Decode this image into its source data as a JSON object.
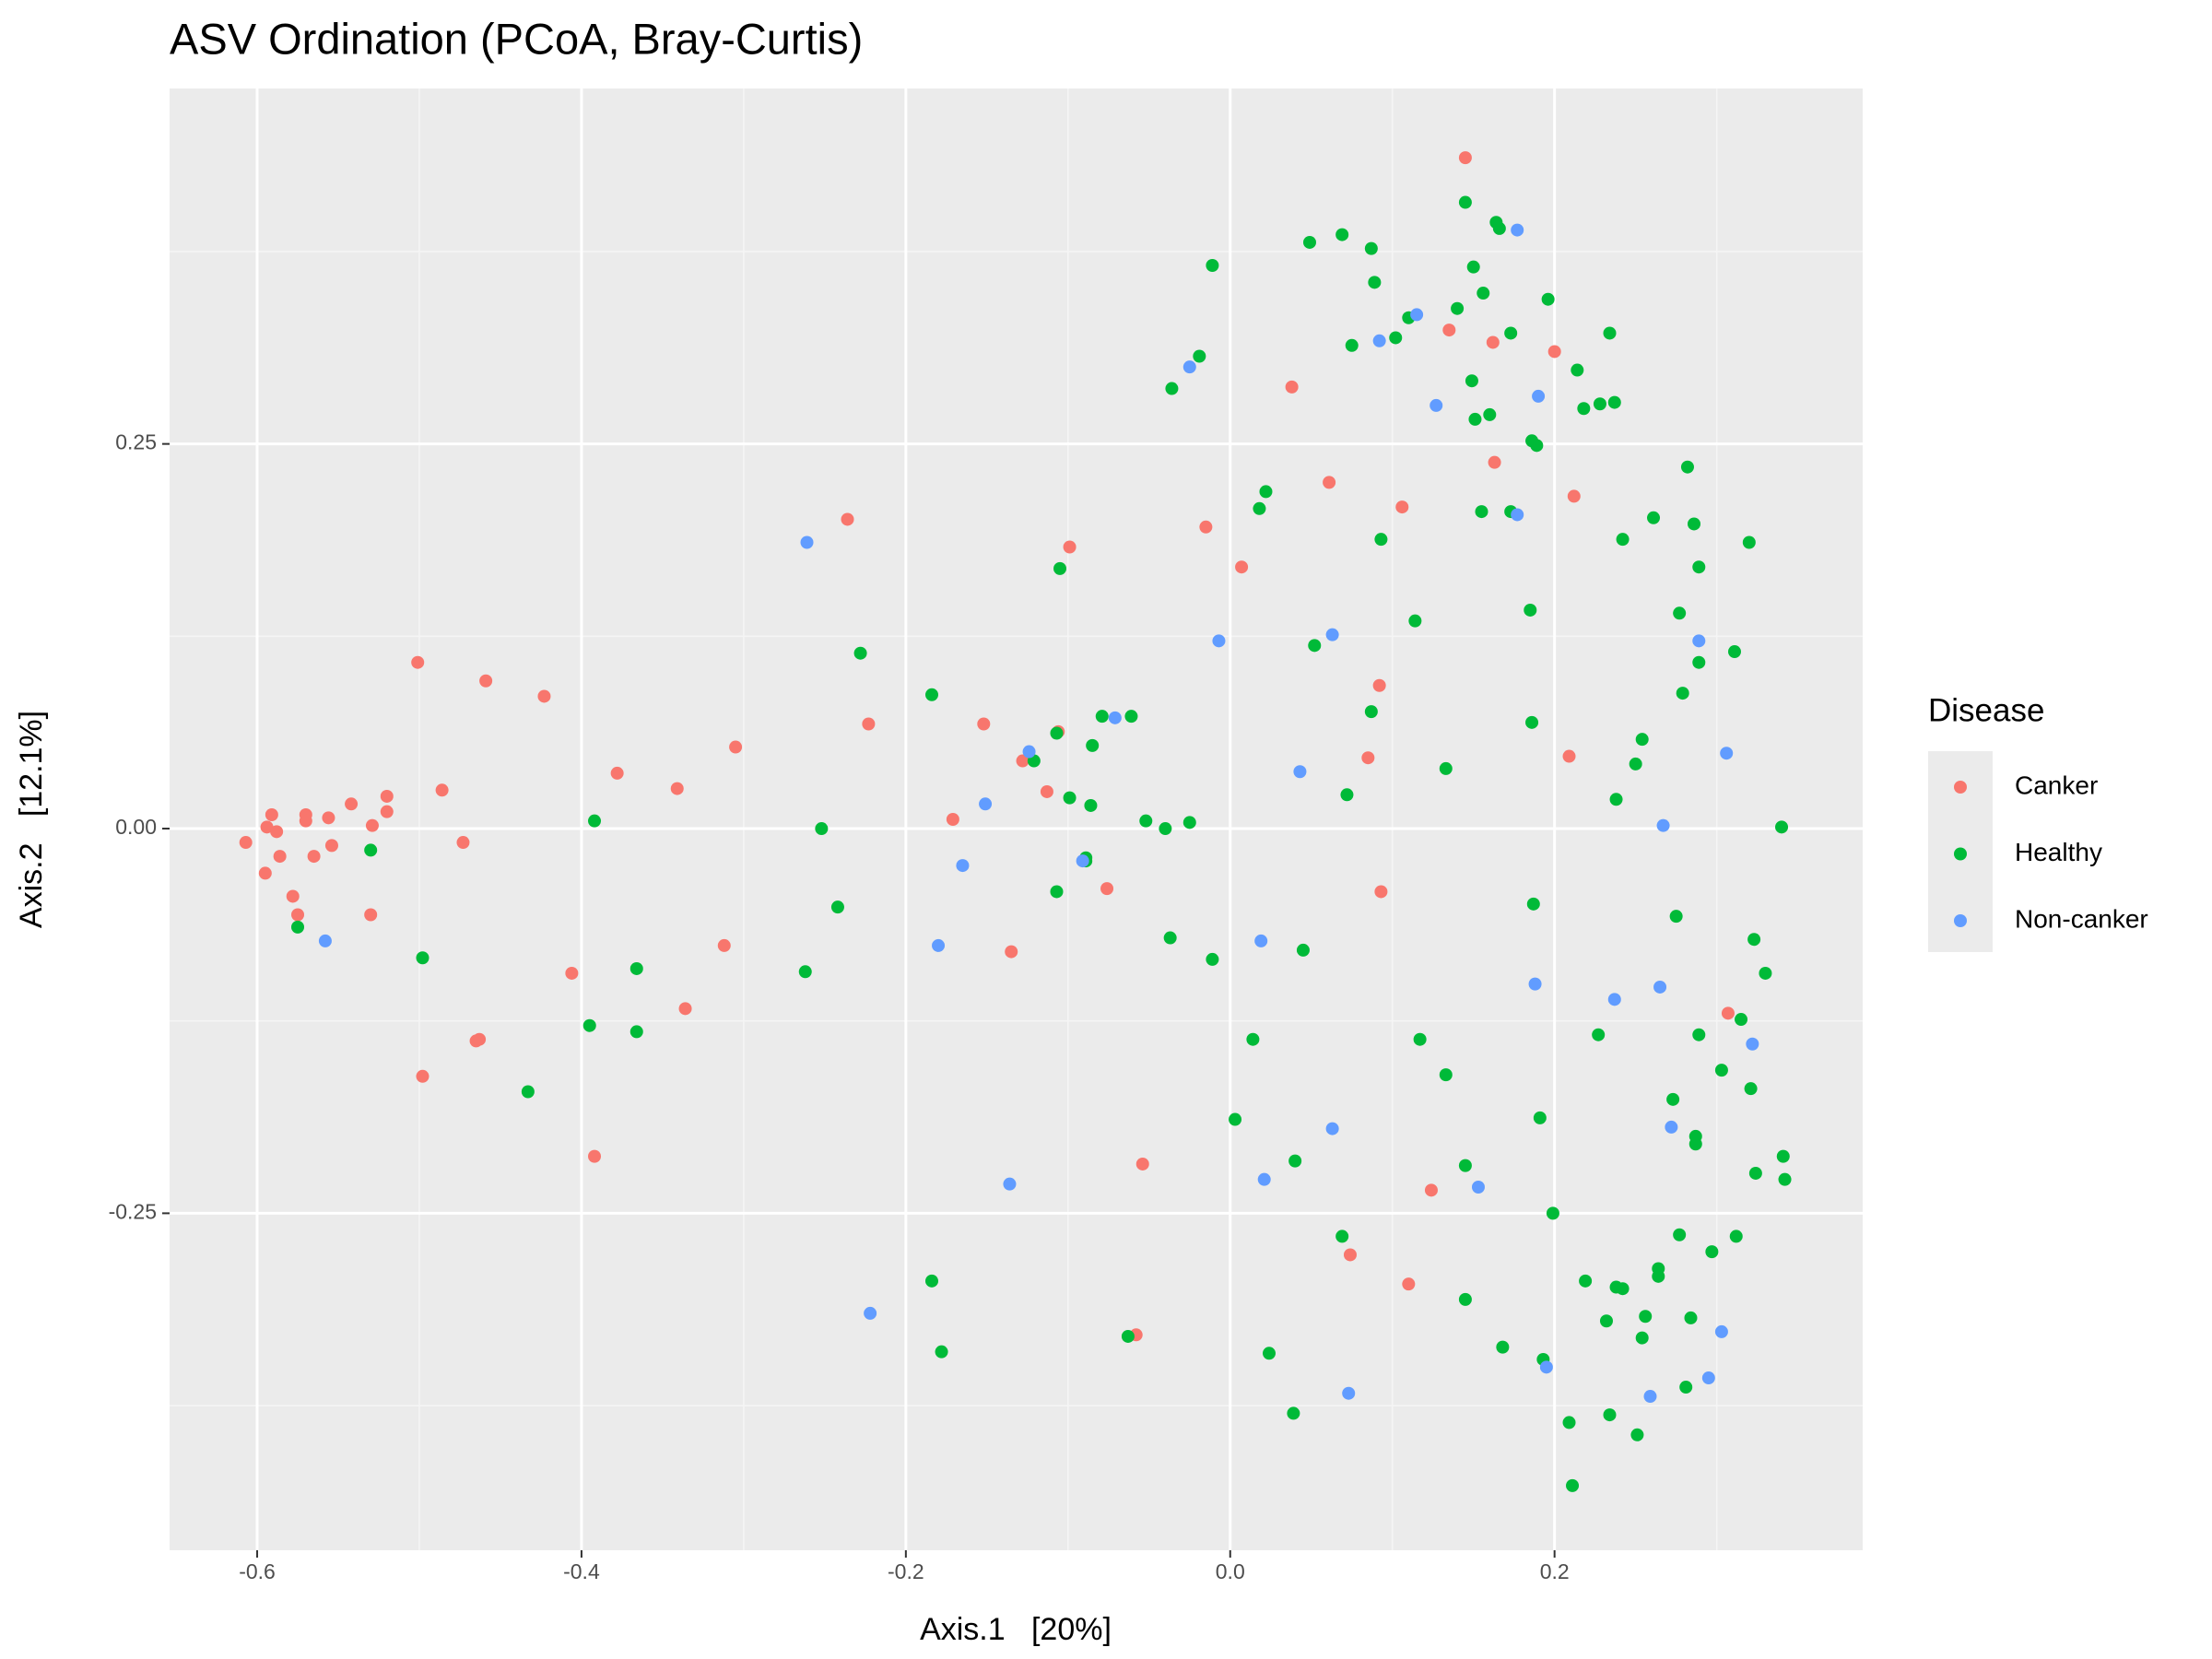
{
  "chart_data": {
    "type": "scatter",
    "title": "ASV Ordination (PCoA, Bray-Curtis)",
    "x_label": "Axis.1   [20%]",
    "y_label": "Axis.2   [12.1%]",
    "legend_title": "Disease",
    "legend_position": "right",
    "grid": true,
    "xlim": [
      -0.654,
      0.39
    ],
    "ylim": [
      -0.469,
      0.481
    ],
    "xticks": [
      -0.6,
      -0.4,
      -0.2,
      {
        "value": 0,
        "label": "0.0"
      },
      0.2
    ],
    "yticks": [
      -0.25,
      {
        "value": 0,
        "label": "0.00"
      },
      0.25
    ],
    "series": [
      {
        "name": "Canker",
        "color": "#f8766d",
        "x": [
          -0.607,
          -0.594,
          -0.591,
          -0.588,
          -0.595,
          -0.586,
          -0.578,
          -0.575,
          -0.57,
          -0.57,
          -0.565,
          -0.556,
          -0.554,
          -0.542,
          -0.53,
          -0.529,
          -0.52,
          -0.52,
          -0.501,
          -0.498,
          -0.486,
          -0.473,
          -0.465,
          -0.463,
          -0.459,
          -0.423,
          -0.406,
          -0.392,
          -0.378,
          -0.341,
          -0.336,
          -0.312,
          -0.305,
          -0.236,
          -0.223,
          -0.171,
          -0.152,
          -0.135,
          -0.128,
          -0.113,
          -0.106,
          -0.099,
          -0.076,
          -0.058,
          -0.054,
          -0.015,
          0.007,
          0.038,
          0.061,
          0.074,
          0.085,
          0.092,
          0.093,
          0.106,
          0.11,
          0.124,
          0.135,
          0.145,
          0.162,
          0.163,
          0.2,
          0.209,
          0.212,
          0.307
        ],
        "values": [
          -0.009,
          0.001,
          0.009,
          -0.002,
          -0.029,
          -0.018,
          -0.044,
          -0.056,
          0.009,
          0.005,
          -0.018,
          0.007,
          -0.011,
          0.016,
          -0.056,
          0.002,
          0.021,
          0.011,
          0.108,
          -0.161,
          0.025,
          -0.009,
          -0.138,
          -0.137,
          0.096,
          0.086,
          -0.094,
          -0.213,
          0.036,
          0.026,
          -0.117,
          -0.076,
          0.053,
          0.201,
          0.068,
          0.006,
          0.068,
          -0.08,
          0.044,
          0.024,
          0.063,
          0.183,
          -0.039,
          -0.329,
          -0.218,
          0.196,
          0.17,
          0.287,
          0.225,
          -0.277,
          0.046,
          0.093,
          -0.041,
          0.209,
          -0.296,
          -0.235,
          0.324,
          0.436,
          0.316,
          0.238,
          0.31,
          0.047,
          0.216,
          -0.12
        ]
      },
      {
        "name": "Healthy",
        "color": "#00ba38",
        "x": [
          -0.575,
          -0.53,
          -0.498,
          -0.433,
          -0.395,
          -0.392,
          -0.366,
          -0.366,
          -0.262,
          -0.252,
          -0.242,
          -0.228,
          -0.184,
          -0.184,
          -0.178,
          -0.121,
          -0.107,
          -0.107,
          -0.105,
          -0.099,
          -0.089,
          -0.089,
          -0.086,
          -0.085,
          -0.079,
          -0.063,
          -0.061,
          -0.052,
          -0.04,
          -0.037,
          -0.036,
          -0.025,
          -0.019,
          -0.011,
          -0.011,
          0.003,
          0.014,
          0.018,
          0.022,
          0.024,
          0.039,
          0.04,
          0.045,
          0.049,
          0.052,
          0.069,
          0.069,
          0.072,
          0.075,
          0.087,
          0.087,
          0.089,
          0.093,
          0.102,
          0.11,
          0.114,
          0.117,
          0.133,
          0.133,
          0.14,
          0.145,
          0.145,
          0.145,
          0.15,
          0.149,
          0.151,
          0.155,
          0.156,
          0.16,
          0.164,
          0.166,
          0.168,
          0.173,
          0.173,
          0.185,
          0.186,
          0.186,
          0.187,
          0.189,
          0.191,
          0.193,
          0.196,
          0.199,
          0.209,
          0.211,
          0.214,
          0.218,
          0.219,
          0.227,
          0.228,
          0.232,
          0.234,
          0.234,
          0.237,
          0.238,
          0.238,
          0.242,
          0.242,
          0.25,
          0.251,
          0.254,
          0.254,
          0.256,
          0.261,
          0.264,
          0.264,
          0.273,
          0.275,
          0.277,
          0.277,
          0.279,
          0.281,
          0.282,
          0.284,
          0.286,
          0.287,
          0.287,
          0.289,
          0.289,
          0.289,
          0.297,
          0.303,
          0.311,
          0.312,
          0.315,
          0.32,
          0.321,
          0.323,
          0.324,
          0.33,
          0.34,
          0.341,
          0.342
        ],
        "values": [
          -0.064,
          -0.014,
          -0.084,
          -0.171,
          -0.128,
          0.005,
          -0.091,
          -0.132,
          -0.093,
          0.0,
          -0.051,
          0.114,
          -0.294,
          0.087,
          -0.34,
          0.044,
          -0.041,
          0.062,
          0.169,
          0.02,
          -0.019,
          -0.021,
          0.015,
          0.054,
          0.073,
          -0.33,
          0.073,
          0.005,
          0.0,
          -0.071,
          0.286,
          0.004,
          0.307,
          0.366,
          -0.085,
          -0.189,
          -0.137,
          0.208,
          0.219,
          -0.341,
          -0.38,
          -0.216,
          -0.079,
          0.381,
          0.119,
          0.386,
          -0.265,
          0.022,
          0.314,
          0.377,
          0.076,
          0.355,
          0.188,
          0.319,
          0.332,
          0.135,
          -0.137,
          0.039,
          -0.16,
          0.338,
          0.407,
          -0.219,
          -0.306,
          0.365,
          0.291,
          0.266,
          0.206,
          0.348,
          0.269,
          0.394,
          0.39,
          -0.337,
          0.322,
          0.206,
          0.142,
          0.252,
          0.069,
          -0.049,
          0.249,
          -0.188,
          -0.345,
          0.344,
          -0.25,
          -0.386,
          -0.427,
          0.298,
          0.273,
          -0.294,
          -0.134,
          0.276,
          -0.32,
          0.322,
          -0.381,
          0.277,
          -0.298,
          0.019,
          -0.299,
          0.188,
          0.042,
          -0.394,
          0.058,
          -0.331,
          -0.317,
          0.202,
          -0.286,
          -0.291,
          -0.176,
          -0.057,
          -0.264,
          0.14,
          0.088,
          -0.363,
          0.235,
          -0.318,
          0.198,
          -0.2,
          -0.205,
          -0.134,
          0.17,
          0.108,
          -0.275,
          -0.157,
          0.115,
          -0.265,
          -0.124,
          0.186,
          -0.169,
          -0.072,
          -0.224,
          -0.094,
          0.001,
          -0.213,
          -0.228
        ]
      },
      {
        "name": "Non-canker",
        "color": "#619cff",
        "x": [
          -0.558,
          -0.261,
          -0.222,
          -0.18,
          -0.165,
          -0.151,
          -0.136,
          -0.124,
          -0.091,
          -0.071,
          -0.025,
          -0.007,
          0.019,
          0.021,
          0.043,
          0.063,
          0.063,
          0.073,
          0.092,
          0.115,
          0.127,
          0.153,
          0.177,
          0.177,
          0.188,
          0.19,
          0.195,
          0.237,
          0.259,
          0.265,
          0.267,
          0.272,
          0.289,
          0.295,
          0.303,
          0.306,
          0.322
        ],
        "values": [
          -0.073,
          0.186,
          -0.315,
          -0.076,
          -0.024,
          0.016,
          -0.231,
          0.05,
          -0.021,
          0.072,
          0.3,
          0.122,
          -0.073,
          -0.228,
          0.037,
          0.126,
          -0.195,
          -0.367,
          0.317,
          0.334,
          0.275,
          -0.233,
          0.389,
          0.204,
          -0.101,
          0.281,
          -0.35,
          -0.111,
          -0.369,
          -0.103,
          0.002,
          -0.194,
          0.122,
          -0.357,
          -0.327,
          0.049,
          -0.14
        ]
      }
    ]
  }
}
